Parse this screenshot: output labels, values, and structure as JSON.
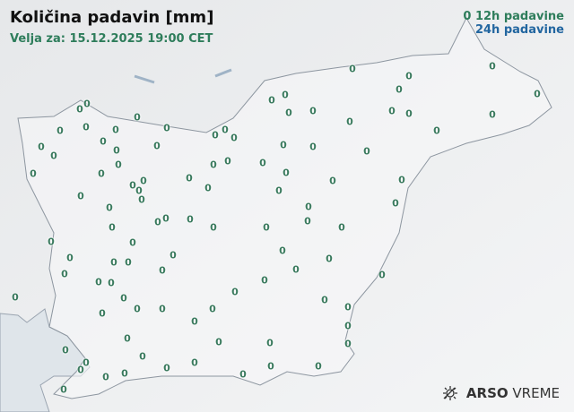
{
  "header": {
    "title": "Količina padavin [mm]",
    "valid": "Velja za: 15.12.2025 19:00 CET"
  },
  "legend": {
    "sample_value": "0",
    "label_12h": "12h padavine",
    "label_24h": "24h padavine",
    "color_12h": "#2e7d5b",
    "color_24h": "#2266a0"
  },
  "stations": {
    "values": [
      "0",
      "0",
      "0",
      "0",
      "0",
      "0",
      "0",
      "0",
      "0",
      "0",
      "0",
      "0",
      "0",
      "0",
      "0",
      "0",
      "0",
      "0",
      "0",
      "0",
      "0",
      "0",
      "0",
      "0",
      "0",
      "0",
      "0",
      "0",
      "0",
      "0",
      "0",
      "0",
      "0",
      "0",
      "0",
      "0",
      "0",
      "0",
      "0",
      "0",
      "0",
      "0",
      "0",
      "0",
      "0",
      "0",
      "0",
      "0",
      "0",
      "0",
      "0",
      "0",
      "0",
      "0",
      "0",
      "0",
      "0",
      "0",
      "0",
      "0",
      "0",
      "0",
      "0",
      "0",
      "0",
      "0",
      "0",
      "0",
      "0",
      "0",
      "0",
      "0",
      "0",
      "0",
      "0",
      "0",
      "0",
      "0",
      "0",
      "0",
      "0",
      "0",
      "0",
      "0",
      "0",
      "0",
      "0",
      "0",
      "0",
      "0",
      "0",
      "0",
      "0",
      "0",
      "0",
      "0",
      "0",
      "0",
      "0",
      "0",
      "0",
      "0",
      "0"
    ]
  },
  "logo": {
    "brand": "ARSO",
    "product": "VREME",
    "icon": "sun-cloud-icon"
  }
}
